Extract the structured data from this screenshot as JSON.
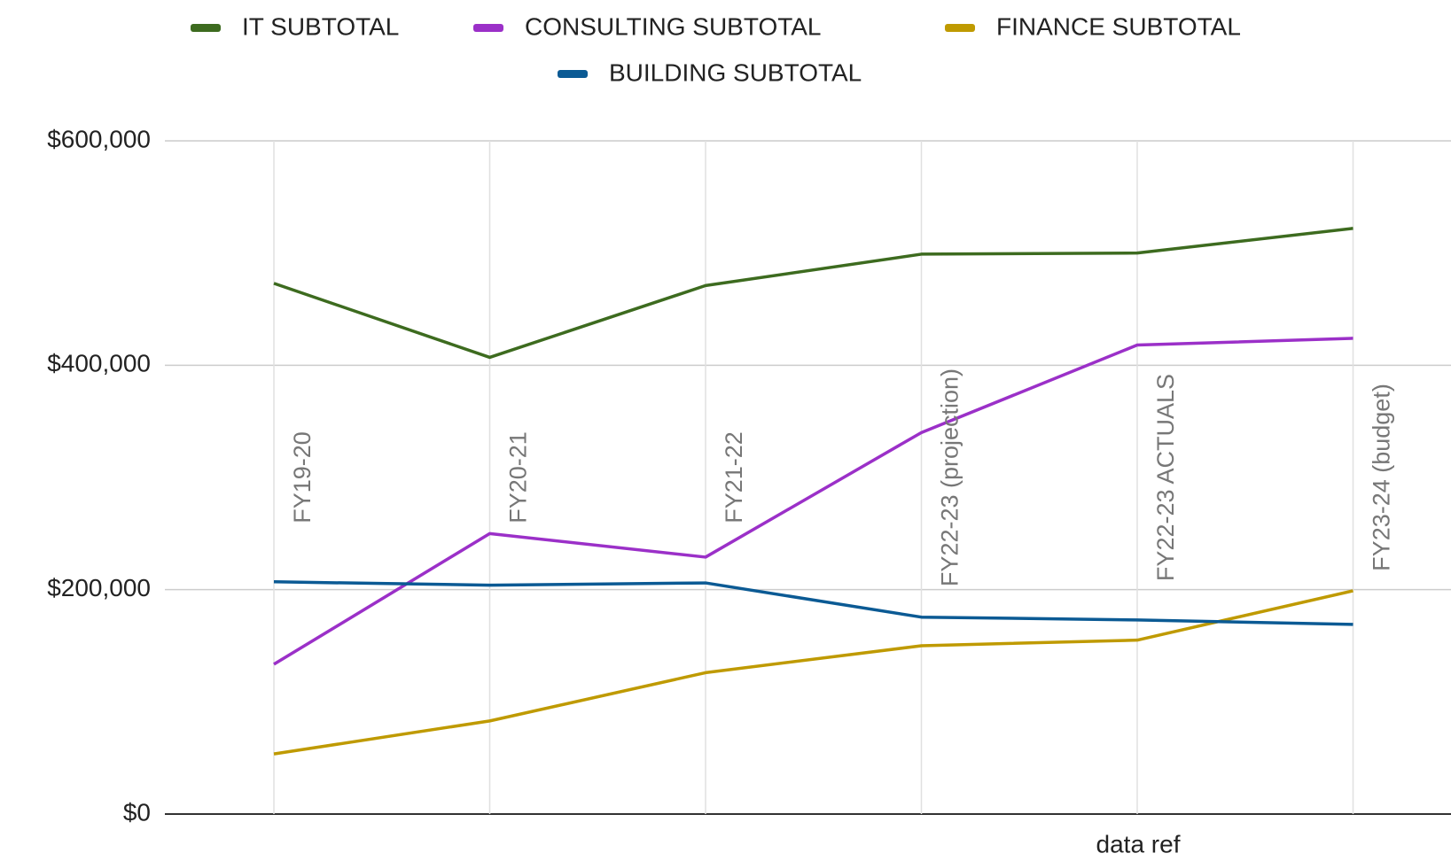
{
  "chart_data": {
    "type": "line",
    "x_label": "data ref",
    "categories": [
      "FY19-20",
      "FY20-21",
      "FY21-22",
      "FY22-23 (projection)",
      "FY22-23 ACTUALS",
      "FY23-24 (budget)"
    ],
    "series": [
      {
        "name": "IT SUBTOTAL",
        "color": "#3d6b1f",
        "values": [
          473000,
          407000,
          471000,
          499000,
          500000,
          522000
        ]
      },
      {
        "name": "CONSULTING SUBTOTAL",
        "color": "#9b30c8",
        "values": [
          133500,
          250000,
          229000,
          340000,
          418000,
          424000
        ]
      },
      {
        "name": "FINANCE SUBTOTAL",
        "color": "#bf9a00",
        "values": [
          53600,
          83000,
          126000,
          150000,
          155000,
          199000
        ]
      },
      {
        "name": "BUILDING SUBTOTAL",
        "color": "#0b5a94",
        "values": [
          207000,
          204000,
          206000,
          175500,
          173000,
          169000
        ]
      }
    ],
    "ylim": [
      0,
      600000
    ],
    "yticks": [
      {
        "value": 0,
        "label": "$0"
      },
      {
        "value": 200000,
        "label": "$200,000"
      },
      {
        "value": 400000,
        "label": "$400,000"
      },
      {
        "value": 600000,
        "label": "$600,000"
      }
    ],
    "grid": true,
    "legend": "top"
  }
}
